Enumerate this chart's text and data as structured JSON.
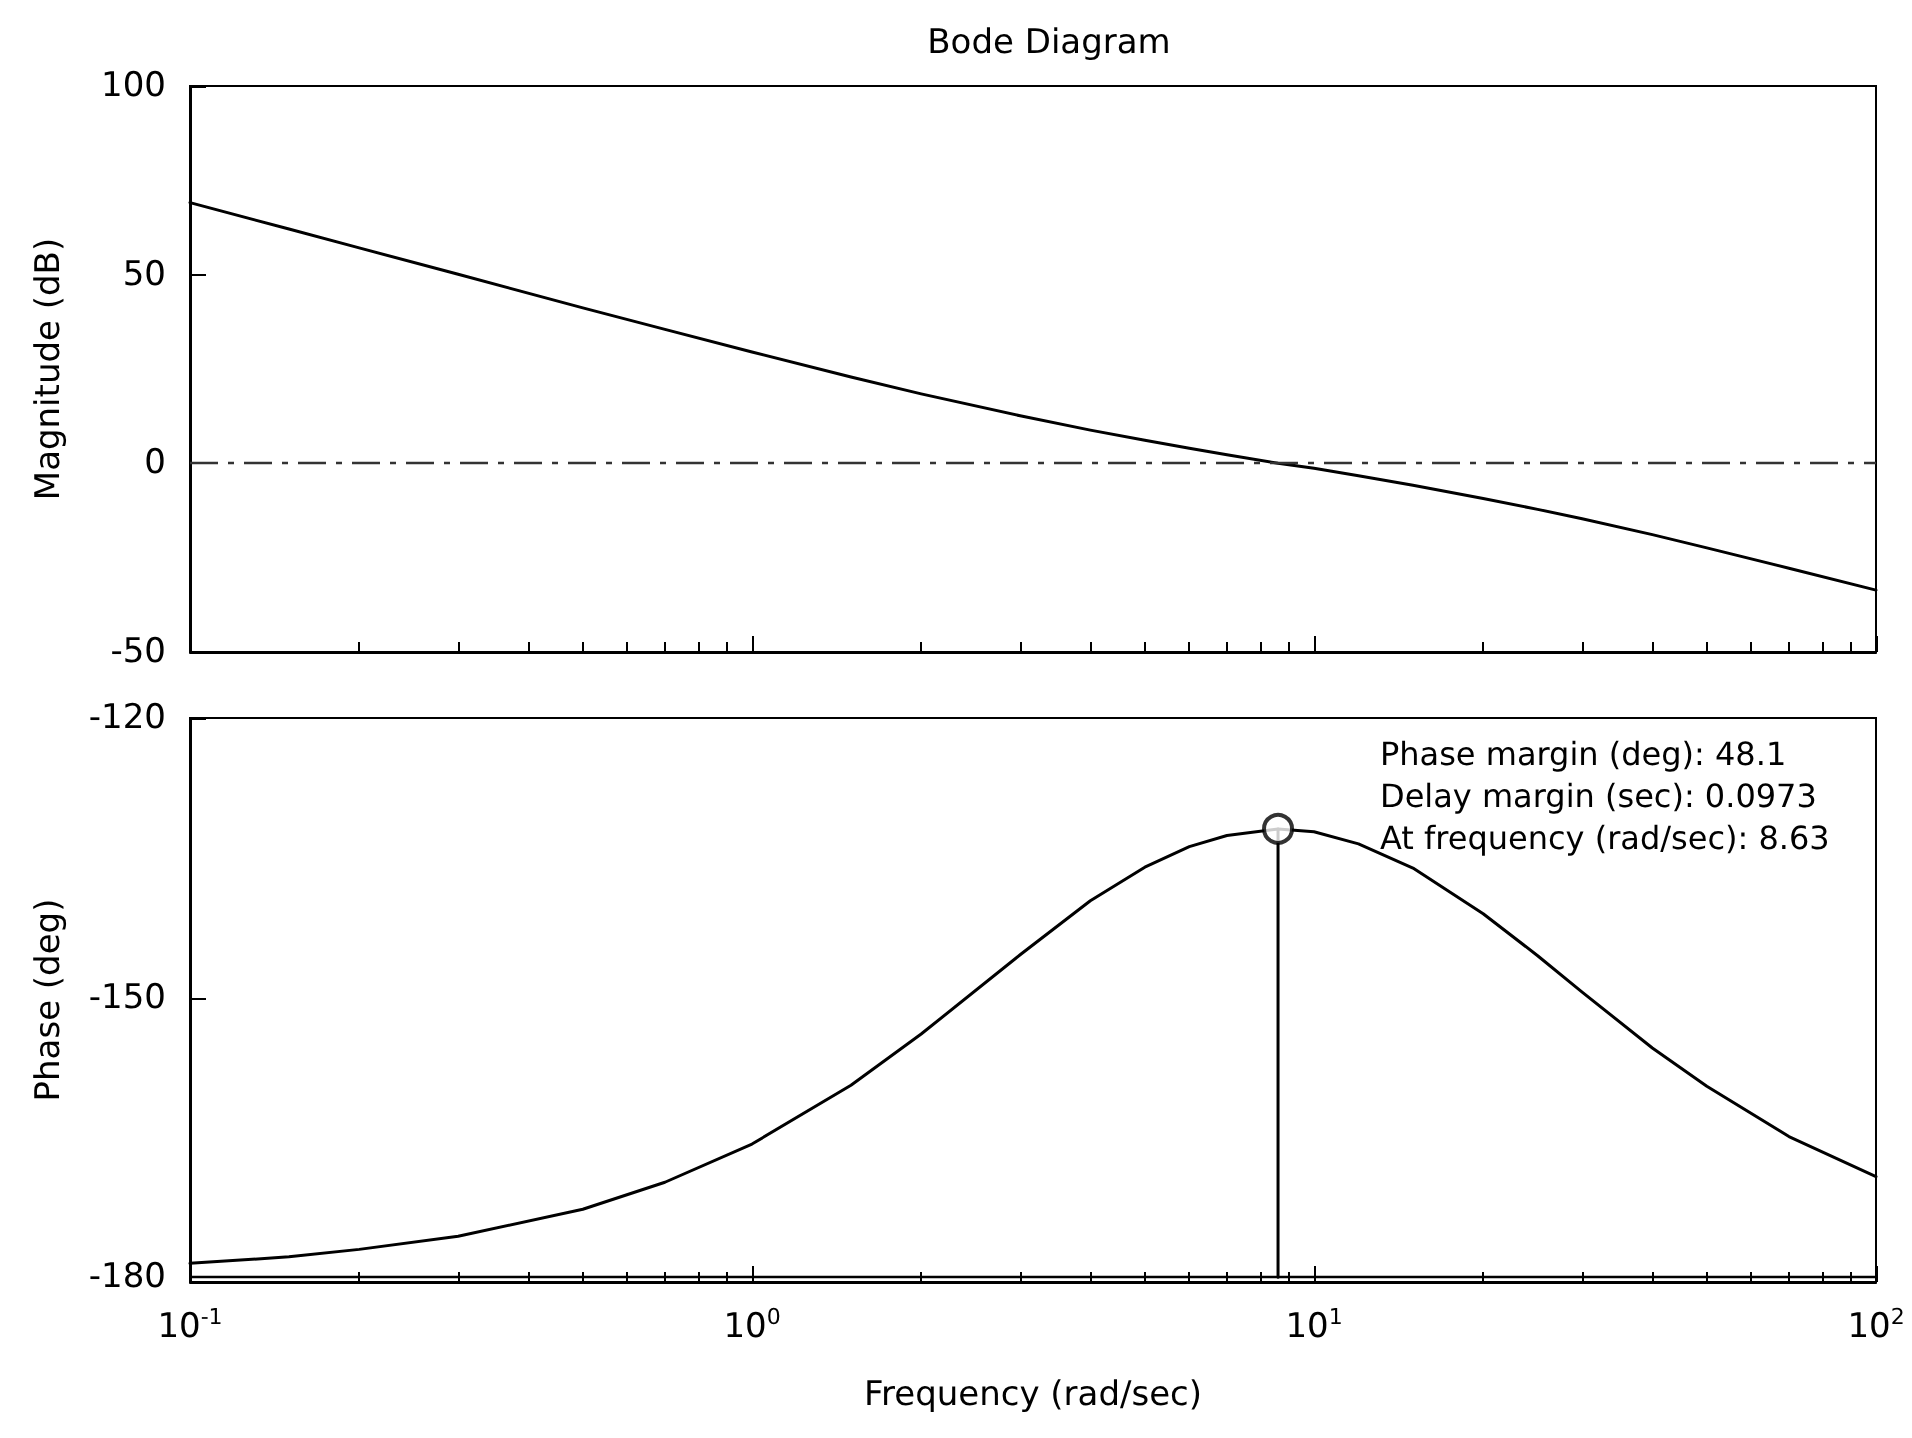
{
  "chart_data": [
    {
      "type": "line",
      "title": "Bode Diagram",
      "ylabel": "Magnitude (dB)",
      "xlim": [
        0.1,
        100
      ],
      "log": "x",
      "tick_labels": "y",
      "ylim": [
        -50,
        100
      ],
      "yticks": [
        -50,
        0,
        50,
        100
      ],
      "xticks": [
        0.1,
        1,
        10,
        100
      ],
      "series": [
        {
          "color": "#000000",
          "x": [
            0.1,
            0.15,
            0.2,
            0.3,
            0.5,
            0.7,
            1,
            1.5,
            2,
            3,
            4,
            5,
            6,
            7,
            8.63,
            10,
            12,
            15,
            20,
            25,
            30,
            40,
            50,
            70,
            100
          ],
          "values": [
            69.1,
            62.1,
            57.1,
            50.1,
            41.2,
            35.5,
            29.5,
            22.9,
            18.4,
            12.6,
            8.8,
            6.1,
            4.0,
            2.3,
            0,
            -1.3,
            -3.3,
            -5.8,
            -9.3,
            -12.2,
            -14.7,
            -18.9,
            -22.4,
            -27.8,
            -33.6
          ]
        }
      ],
      "ref_lines": [
        {
          "axis": "y",
          "value": 0,
          "color": "#333333",
          "line_style": "dashdot"
        }
      ]
    },
    {
      "type": "line",
      "ylabel": "Phase (deg)",
      "xlabel": "Frequency (rad/sec)",
      "log": "x",
      "xlim": [
        0.1,
        100
      ],
      "ylim": [
        -180.5,
        -120
      ],
      "yticks": [
        -180,
        -150,
        -120
      ],
      "xticks": [
        {
          "value": 0.1,
          "label": "10$^{-1}$"
        },
        {
          "value": 1,
          "label": "10$^{0}$"
        },
        {
          "value": 10,
          "label": "10$^{1}$"
        },
        {
          "value": 100,
          "label": "10$^{2}$"
        }
      ],
      "series": [
        {
          "color": "#000000",
          "x": [
            0.1,
            0.15,
            0.2,
            0.3,
            0.5,
            0.7,
            1,
            1.5,
            2,
            3,
            4,
            5,
            6,
            7,
            8.63,
            10,
            12,
            15,
            20,
            25,
            30,
            40,
            50,
            70,
            100
          ],
          "values": [
            -178.5,
            -177.8,
            -177.0,
            -175.6,
            -172.7,
            -169.8,
            -165.7,
            -159.4,
            -153.9,
            -145.4,
            -139.6,
            -136.0,
            -133.8,
            -132.6,
            -131.9,
            -132.2,
            -133.5,
            -136.1,
            -141.0,
            -145.5,
            -149.4,
            -155.4,
            -159.5,
            -164.9,
            -169.2
          ]
        },
        {
          "color": "#000000",
          "x": [
            8.63,
            8.63
          ],
          "values": [
            -180,
            -131.9
          ]
        },
        {
          "type": "scatter",
          "color": "#000000",
          "marker": "circle",
          "x": [
            8.63
          ],
          "values": [
            -131.9
          ]
        }
      ],
      "ref_lines": [
        {
          "axis": "y",
          "value": -180,
          "color": "#000000",
          "line_style": "solid"
        }
      ],
      "annotations": [
        "Phase margin (deg): 48.1",
        "Delay margin (sec): 0.0973",
        "At frequency (rad/sec): 8.63"
      ]
    }
  ]
}
